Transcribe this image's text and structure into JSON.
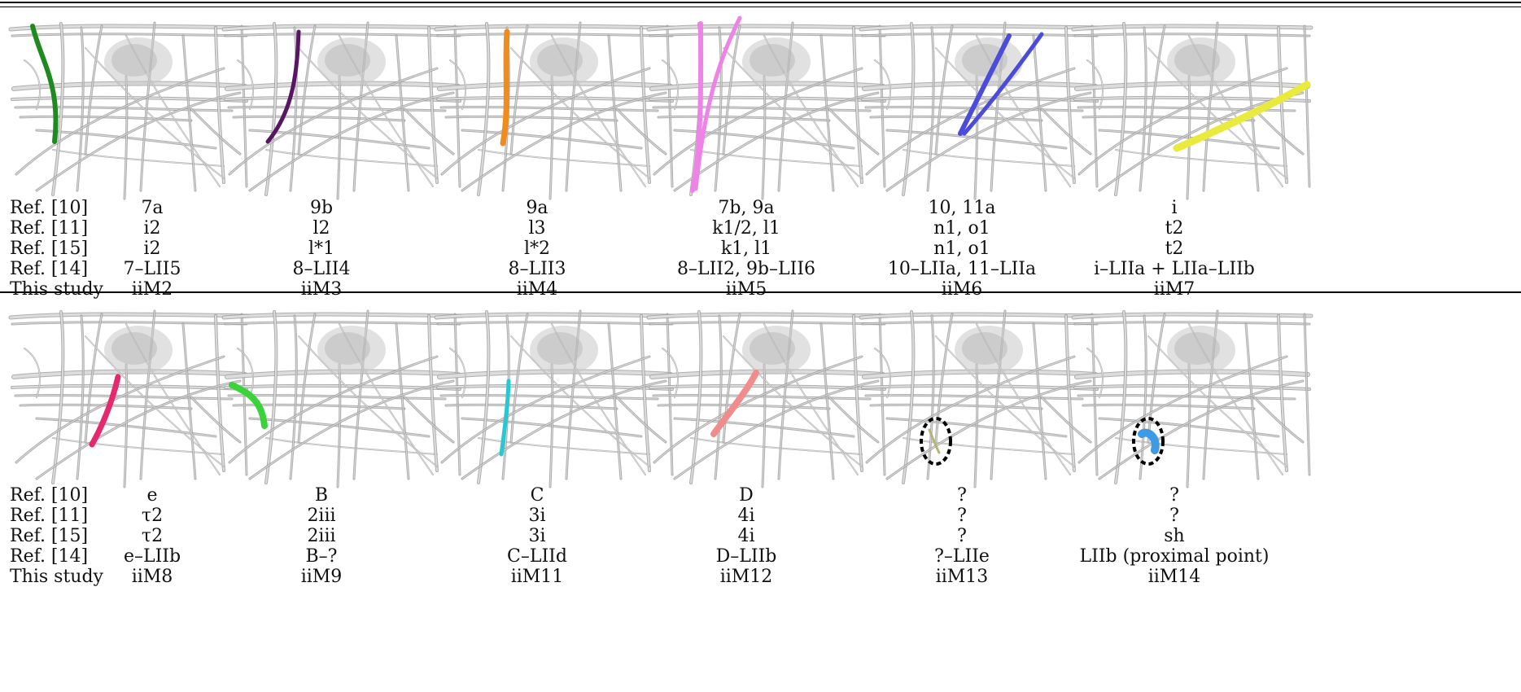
{
  "row_labels": [
    "Ref. [10]",
    "Ref. [11]",
    "Ref. [15]",
    "Ref. [14]",
    "This study"
  ],
  "blocks": [
    {
      "panels": [
        {
          "muscle": "iiM2",
          "color": "#1f8a1f"
        },
        {
          "muscle": "iiM3",
          "color": "#5a1464"
        },
        {
          "muscle": "iiM4",
          "color": "#f08c1e"
        },
        {
          "muscle": "iiM5",
          "color": "#ee82e6"
        },
        {
          "muscle": "iiM6",
          "color": "#4b4bdc"
        },
        {
          "muscle": "iiM7",
          "color": "#eaea3c"
        }
      ],
      "rows": [
        [
          "7a",
          "9b",
          "9a",
          "7b, 9a",
          "10, 11a",
          "i"
        ],
        [
          "i2",
          "l2",
          "l3",
          "k1/2, l1",
          "n1, o1",
          "t2"
        ],
        [
          "i2",
          "l*1",
          "l*2",
          "k1, l1",
          "n1, o1",
          "t2"
        ],
        [
          "7–LII5",
          "8–LII4",
          "8–LII3",
          "8–LII2, 9b–LII6",
          "10–LIIa, 11–LIIa",
          "i–LIIa + LIIa–LIIb"
        ],
        [
          "iiM2",
          "iiM3",
          "iiM4",
          "iiM5",
          "iiM6",
          "iiM7"
        ]
      ]
    },
    {
      "panels": [
        {
          "muscle": "iiM8",
          "color": "#e6286e"
        },
        {
          "muscle": "iiM9",
          "color": "#3cd23c"
        },
        {
          "muscle": "iiM11",
          "color": "#28c8d2"
        },
        {
          "muscle": "iiM12",
          "color": "#f08c8c"
        },
        {
          "muscle": "iiM13",
          "color": "#b4b478"
        },
        {
          "muscle": "iiM14",
          "color": "#3c9be6"
        }
      ],
      "rows": [
        [
          "e",
          "B",
          "C",
          "D",
          "?",
          "?"
        ],
        [
          "τ2",
          "2iii",
          "3i",
          "4i",
          "?",
          "?"
        ],
        [
          "τ2",
          "2iii",
          "3i",
          "4i",
          "?",
          "sh"
        ],
        [
          "e–LIIb",
          "B–?",
          "C–LIId",
          "D–LIIb",
          "?–LIIe",
          "LIIb (proximal point)"
        ],
        [
          "iiM8",
          "iiM9",
          "iiM11",
          "iiM12",
          "iiM13",
          "iiM14"
        ]
      ]
    }
  ]
}
